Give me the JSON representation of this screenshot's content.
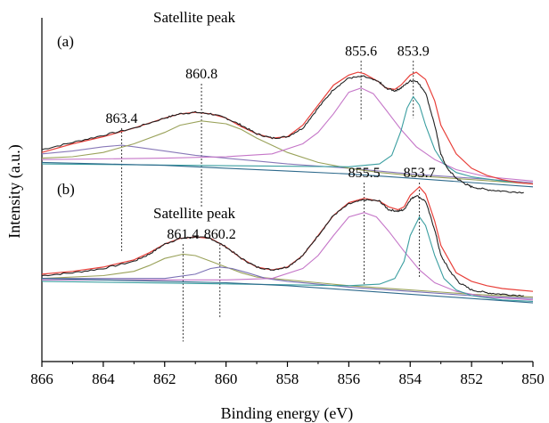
{
  "chart_data": {
    "type": "line",
    "xlabel": "Binding energy (eV)",
    "ylabel": "Intensity (a.u.)",
    "xlim": [
      866,
      850
    ],
    "x_reversed": true,
    "xticks": [
      866,
      864,
      862,
      860,
      858,
      856,
      854,
      852,
      850
    ],
    "yticks": [],
    "ylim": [
      0,
      2.4
    ],
    "grid": false,
    "panels": [
      {
        "label": "(a)",
        "annotation": "Satellite peak",
        "peak_labels": [
          {
            "text": "863.4",
            "x": 863.4,
            "y": 0.76
          },
          {
            "text": "860.8",
            "x": 860.8,
            "y": 1.07
          },
          {
            "text": "855.6",
            "x": 855.6,
            "y": 1.68
          },
          {
            "text": "853.9",
            "x": 853.9,
            "y": 1.7
          }
        ],
        "experimental": {
          "color": "#222222",
          "x": [
            866,
            865,
            864,
            863,
            862,
            861.5,
            861,
            860.5,
            860,
            859.5,
            859,
            858.5,
            858,
            857.5,
            857,
            856.5,
            856,
            855.5,
            855,
            854.8,
            854.5,
            854.3,
            854,
            853.8,
            853.5,
            853.2,
            853,
            852.8,
            852.5,
            852.2,
            852,
            851.5,
            851,
            850.3
          ],
          "y": [
            1.48,
            1.53,
            1.58,
            1.63,
            1.7,
            1.73,
            1.74,
            1.73,
            1.7,
            1.65,
            1.59,
            1.56,
            1.57,
            1.63,
            1.77,
            1.9,
            1.98,
            1.99,
            1.95,
            1.91,
            1.89,
            1.91,
            1.96,
            1.96,
            1.88,
            1.65,
            1.45,
            1.35,
            1.28,
            1.24,
            1.22,
            1.2,
            1.19,
            1.18
          ]
        },
        "fitted": {
          "color": "#e8403a",
          "x": [
            866,
            865,
            864,
            863,
            862,
            861.5,
            861,
            860.5,
            860,
            859.5,
            859,
            858.5,
            858,
            857.5,
            857,
            856.5,
            856,
            855.7,
            855.5,
            855,
            854.8,
            854.5,
            854.3,
            854,
            853.8,
            853.5,
            853.2,
            853,
            852.5,
            852,
            851.5,
            851,
            850.5,
            850
          ],
          "y": [
            1.46,
            1.52,
            1.57,
            1.63,
            1.7,
            1.73,
            1.74,
            1.73,
            1.7,
            1.64,
            1.59,
            1.56,
            1.57,
            1.65,
            1.79,
            1.93,
            2.0,
            2.02,
            2.01,
            1.95,
            1.91,
            1.9,
            1.93,
            2.0,
            2.02,
            1.97,
            1.82,
            1.65,
            1.45,
            1.35,
            1.3,
            1.27,
            1.25,
            1.24
          ]
        },
        "components": [
          {
            "color": "#8878b8",
            "x": [
              866,
              865,
              864,
              863.4,
              863,
              862,
              861,
              860,
              859,
              858,
              856,
              854,
              852,
              850
            ],
            "y": [
              1.45,
              1.47,
              1.5,
              1.51,
              1.5,
              1.47,
              1.44,
              1.42,
              1.4,
              1.38,
              1.35,
              1.31,
              1.28,
              1.25
            ]
          },
          {
            "color": "#9aa25a",
            "x": [
              866,
              865,
              864,
              863,
              862,
              861.5,
              860.8,
              860,
              859.5,
              859,
              858,
              857,
              856,
              855,
              854,
              852,
              850
            ],
            "y": [
              1.42,
              1.43,
              1.46,
              1.52,
              1.6,
              1.65,
              1.68,
              1.66,
              1.62,
              1.56,
              1.46,
              1.39,
              1.35,
              1.32,
              1.3,
              1.27,
              1.24
            ]
          },
          {
            "color": "#c576c8",
            "x": [
              866,
              862,
              860,
              858.5,
              857.5,
              857,
              856.5,
              856,
              855.6,
              855.2,
              854.8,
              854.3,
              853.8,
              853.2,
              852.5,
              851.5,
              850
            ],
            "y": [
              1.41,
              1.42,
              1.43,
              1.45,
              1.52,
              1.6,
              1.73,
              1.88,
              1.91,
              1.87,
              1.76,
              1.62,
              1.5,
              1.41,
              1.34,
              1.29,
              1.26
            ]
          },
          {
            "color": "#3a9ea0",
            "x": [
              866,
              856,
              855,
              854.6,
              854.3,
              854.1,
              853.9,
              853.7,
              853.5,
              853.2,
              852.9,
              852.5,
              852,
              851,
              850
            ],
            "y": [
              1.38,
              1.36,
              1.38,
              1.44,
              1.61,
              1.77,
              1.85,
              1.79,
              1.65,
              1.48,
              1.38,
              1.32,
              1.29,
              1.26,
              1.24
            ]
          },
          {
            "color": "#2e6a8c",
            "x": [
              866,
              864,
              862,
              860,
              858,
              856,
              854,
              852,
              850
            ],
            "y": [
              1.39,
              1.38,
              1.37,
              1.35,
              1.33,
              1.31,
              1.28,
              1.25,
              1.22
            ]
          }
        ]
      },
      {
        "label": "(b)",
        "annotation": "Satellite peak",
        "peak_labels": [
          {
            "text": "861.4",
            "x": 861.4,
            "y": 0.14
          },
          {
            "text": "860.2",
            "x": 860.2,
            "y": 0.3
          },
          {
            "text": "855.5",
            "x": 855.5,
            "y": 0.54
          },
          {
            "text": "853.7",
            "x": 853.7,
            "y": 0.58
          }
        ],
        "experimental": {
          "color": "#222222",
          "x": [
            866,
            865,
            864,
            863,
            862.5,
            862,
            861.5,
            861,
            860.5,
            860,
            859.5,
            859,
            858.5,
            858,
            857.5,
            857,
            856.5,
            856,
            855.5,
            855,
            854.7,
            854.4,
            854.2,
            854,
            853.8,
            853.5,
            853.2,
            853,
            852.7,
            852.4,
            852,
            851.5,
            851,
            850.3
          ],
          "y": [
            0.6,
            0.62,
            0.65,
            0.7,
            0.75,
            0.82,
            0.86,
            0.87,
            0.86,
            0.8,
            0.72,
            0.66,
            0.64,
            0.66,
            0.74,
            0.88,
            1.02,
            1.1,
            1.13,
            1.12,
            1.06,
            1.05,
            1.06,
            1.13,
            1.16,
            1.12,
            0.92,
            0.74,
            0.63,
            0.55,
            0.5,
            0.48,
            0.47,
            0.46
          ]
        },
        "fitted": {
          "color": "#e8403a",
          "x": [
            866,
            865,
            864,
            863,
            862.5,
            862,
            861.5,
            861,
            860.5,
            860,
            859.5,
            859,
            858.5,
            858,
            857.5,
            857,
            856.5,
            856,
            855.5,
            855,
            854.7,
            854.4,
            854.2,
            854,
            853.8,
            853.7,
            853.5,
            853.2,
            853,
            852.5,
            852,
            851.5,
            851,
            850.5,
            850
          ],
          "y": [
            0.61,
            0.63,
            0.66,
            0.71,
            0.76,
            0.82,
            0.86,
            0.87,
            0.86,
            0.8,
            0.72,
            0.66,
            0.64,
            0.66,
            0.74,
            0.88,
            1.02,
            1.11,
            1.14,
            1.12,
            1.08,
            1.06,
            1.08,
            1.16,
            1.2,
            1.22,
            1.17,
            0.98,
            0.81,
            0.62,
            0.56,
            0.53,
            0.51,
            0.5,
            0.49
          ]
        },
        "components": [
          {
            "color": "#9aa25a",
            "x": [
              866,
              864,
              863,
              862.5,
              862,
              861.4,
              861,
              860.5,
              860,
              859.5,
              859,
              858,
              857,
              856,
              854,
              852,
              850
            ],
            "y": [
              0.58,
              0.6,
              0.63,
              0.67,
              0.72,
              0.75,
              0.74,
              0.7,
              0.66,
              0.62,
              0.59,
              0.57,
              0.55,
              0.53,
              0.5,
              0.47,
              0.45
            ]
          },
          {
            "color": "#7a70b5",
            "x": [
              866,
              862,
              861,
              860.5,
              860.2,
              859.8,
              859.3,
              858.7,
              858,
              857,
              856,
              854,
              852,
              850
            ],
            "y": [
              0.58,
              0.58,
              0.61,
              0.65,
              0.66,
              0.65,
              0.62,
              0.58,
              0.56,
              0.54,
              0.52,
              0.49,
              0.46,
              0.44
            ]
          },
          {
            "color": "#c576c8",
            "x": [
              866,
              862,
              860,
              858.5,
              857.5,
              857,
              856.5,
              856,
              855.5,
              855.1,
              854.7,
              854.2,
              853.7,
              853.2,
              852.5,
              851.5,
              850
            ],
            "y": [
              0.57,
              0.57,
              0.57,
              0.58,
              0.65,
              0.74,
              0.88,
              1.01,
              1.04,
              1.01,
              0.91,
              0.77,
              0.64,
              0.55,
              0.49,
              0.45,
              0.43
            ]
          },
          {
            "color": "#3a9ea0",
            "x": [
              866,
              856,
              855,
              854.5,
              854.2,
              854,
              853.7,
              853.5,
              853.2,
              852.9,
              852.5,
              852,
              851,
              850
            ],
            "y": [
              0.56,
              0.53,
              0.54,
              0.58,
              0.7,
              0.88,
              1.01,
              0.95,
              0.74,
              0.58,
              0.5,
              0.46,
              0.43,
              0.42
            ]
          },
          {
            "color": "#2e6a8c",
            "x": [
              866,
              864,
              862,
              860,
              858,
              856,
              854,
              852,
              850
            ],
            "y": [
              0.58,
              0.57,
              0.56,
              0.55,
              0.53,
              0.5,
              0.47,
              0.44,
              0.41
            ]
          }
        ]
      }
    ]
  }
}
